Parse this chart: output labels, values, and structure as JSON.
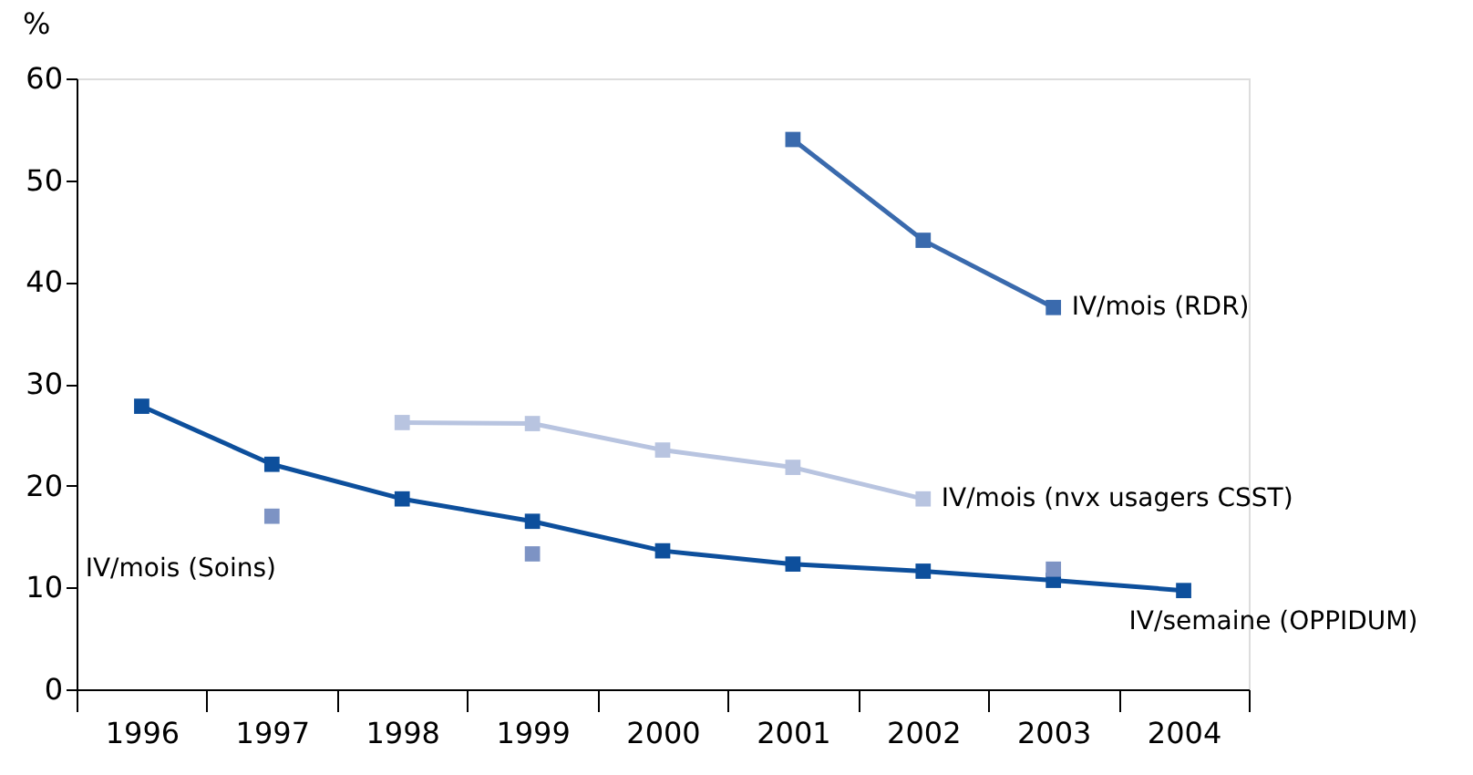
{
  "chart_data": {
    "type": "line",
    "ylabel": "%",
    "categories": [
      "1996",
      "1997",
      "1998",
      "1999",
      "2000",
      "2001",
      "2002",
      "2003",
      "2004"
    ],
    "series": [
      {
        "name": "IV/mois (RDR)",
        "color": "#3a6aad",
        "values": [
          null,
          null,
          null,
          null,
          null,
          54.0,
          44.1,
          37.5,
          null
        ]
      },
      {
        "name": "IV/mois (nvx usagers CSST)",
        "color": "#b8c4e0",
        "values": [
          null,
          null,
          26.2,
          26.1,
          23.5,
          21.8,
          18.7,
          null,
          null
        ]
      },
      {
        "name": "IV/semaine (OPPIDUM)",
        "color": "#0d4f9c",
        "values": [
          27.8,
          22.1,
          18.7,
          16.5,
          13.6,
          12.3,
          11.6,
          10.7,
          9.7
        ]
      },
      {
        "name": "IV/mois (Soins)",
        "type": "scatter",
        "color": "#7d93c4",
        "values": [
          null,
          17.0,
          null,
          13.3,
          null,
          null,
          null,
          11.8,
          null
        ]
      }
    ],
    "ylim": [
      0,
      60
    ],
    "yticks": [
      0,
      10,
      20,
      30,
      40,
      50,
      60
    ],
    "grid": false,
    "marker": "square",
    "line_style": "solid"
  }
}
